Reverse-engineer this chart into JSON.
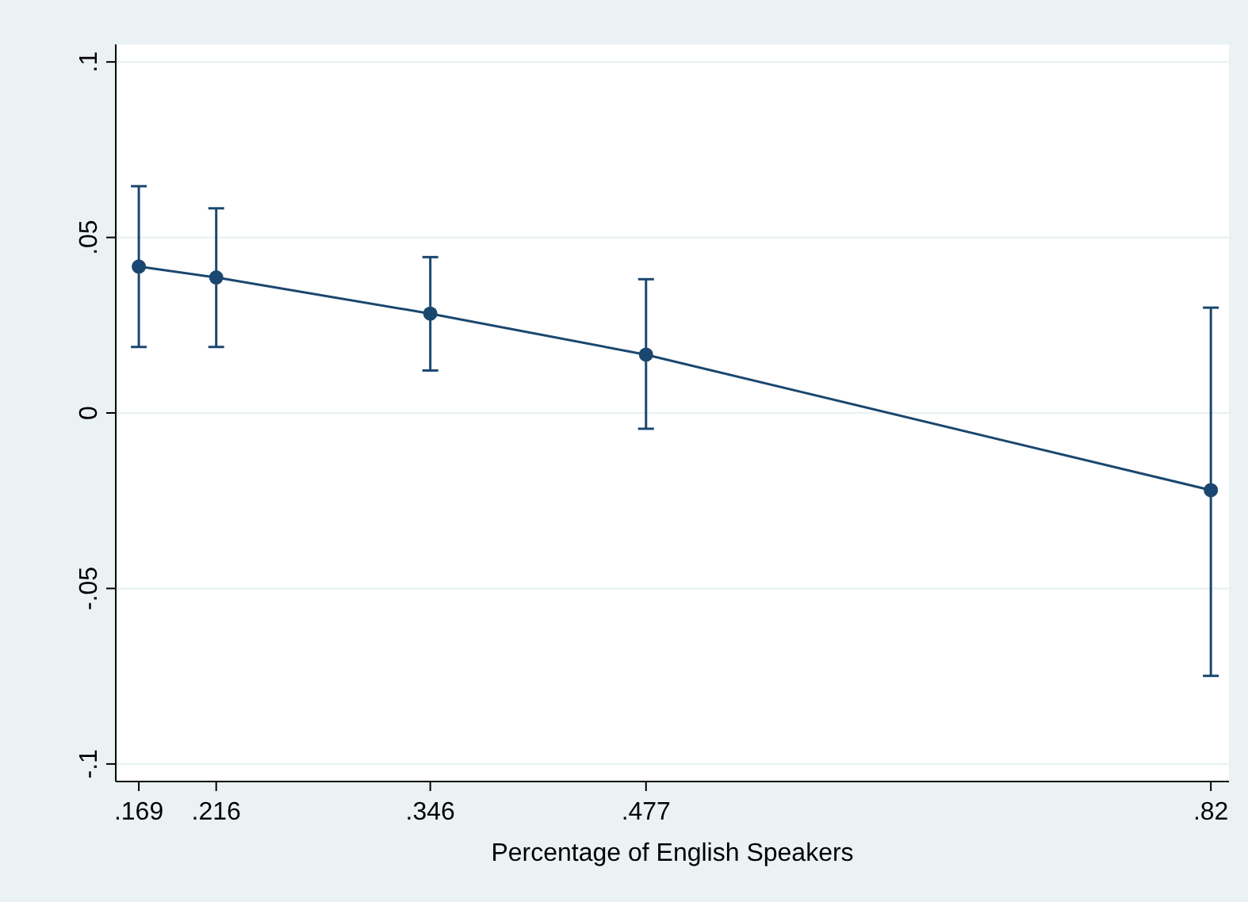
{
  "chart_data": {
    "type": "line",
    "xlabel": "Percentage of English Speakers",
    "x": [
      0.169,
      0.216,
      0.346,
      0.477,
      0.82
    ],
    "series": [
      {
        "color": "#1a476f",
        "values": [
          0.0417,
          0.0386,
          0.0283,
          0.0166,
          -0.022
        ],
        "errors": [
          [
            0.0188,
            0.0646
          ],
          [
            0.0188,
            0.0583
          ],
          [
            0.0121,
            0.0444
          ],
          [
            -0.0045,
            0.0381
          ],
          [
            -0.0749,
            0.03
          ]
        ]
      }
    ],
    "xlim": [
      0.155,
      0.831
    ],
    "ylim": [
      -0.105,
      0.105
    ],
    "xticks": [
      {
        "value": 0.169,
        "label": ".169"
      },
      {
        "value": 0.216,
        "label": ".216"
      },
      {
        "value": 0.346,
        "label": ".346"
      },
      {
        "value": 0.477,
        "label": ".477"
      },
      {
        "value": 0.82,
        "label": ".82"
      }
    ],
    "yticks": [
      {
        "value": -0.1,
        "label": "-.1"
      },
      {
        "value": -0.05,
        "label": "-.05"
      },
      {
        "value": 0,
        "label": "0"
      },
      {
        "value": 0.05,
        "label": ".05"
      },
      {
        "value": 0.1,
        "label": ".1"
      }
    ],
    "grid": "y",
    "marker": "circle",
    "line_style": "solid"
  }
}
